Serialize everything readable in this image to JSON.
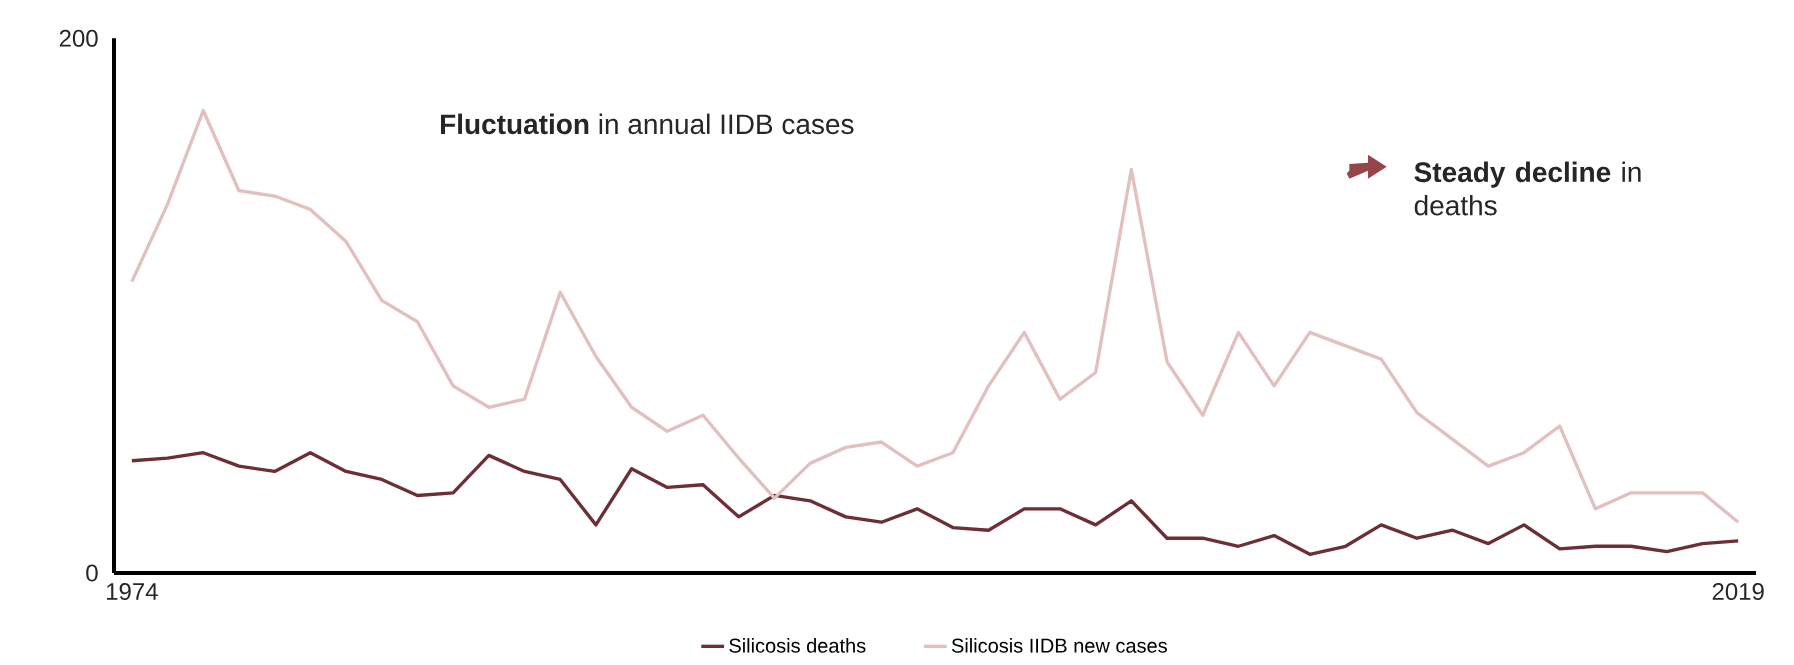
{
  "chart_data": {
    "type": "line",
    "x": [
      1974,
      1975,
      1976,
      1977,
      1978,
      1979,
      1980,
      1981,
      1982,
      1983,
      1984,
      1985,
      1986,
      1987,
      1988,
      1989,
      1990,
      1991,
      1992,
      1993,
      1994,
      1995,
      1996,
      1997,
      1998,
      1999,
      2000,
      2001,
      2002,
      2003,
      2004,
      2005,
      2006,
      2007,
      2008,
      2009,
      2010,
      2011,
      2012,
      2013,
      2014,
      2015,
      2016,
      2017,
      2018,
      2019
    ],
    "series": [
      {
        "name": "Silicosis deaths",
        "color": "#6b2f35",
        "values": [
          42,
          43,
          45,
          40,
          38,
          45,
          38,
          35,
          29,
          30,
          44,
          38,
          35,
          18,
          39,
          32,
          33,
          21,
          29,
          27,
          21,
          19,
          24,
          17,
          16,
          24,
          24,
          18,
          27,
          13,
          13,
          10,
          14,
          7,
          10,
          18,
          13,
          16,
          11,
          18,
          9,
          10,
          10,
          8,
          11,
          12
        ]
      },
      {
        "name": "Silicosis IIDB new cases",
        "color": "#e2c0c0",
        "values": [
          109,
          138,
          173,
          143,
          141,
          136,
          124,
          102,
          94,
          70,
          62,
          65,
          105,
          81,
          62,
          53,
          59,
          43,
          28,
          41,
          47,
          49,
          40,
          45,
          70,
          90,
          65,
          75,
          151,
          79,
          59,
          90,
          70,
          90,
          85,
          80,
          60,
          50,
          40,
          45,
          55,
          24,
          30,
          30,
          30,
          19
        ]
      }
    ],
    "xlim": [
      1973.5,
      2019.5
    ],
    "xticks": [
      1974,
      2019
    ],
    "ylim": [
      0,
      200
    ],
    "yticks": [
      0,
      200
    ],
    "marker": "none",
    "line_style": "solid",
    "legend": "bottom",
    "annotations": [
      "**Fluctuation** in annual IIDB cases",
      "**Steady decline** in deaths"
    ]
  }
}
